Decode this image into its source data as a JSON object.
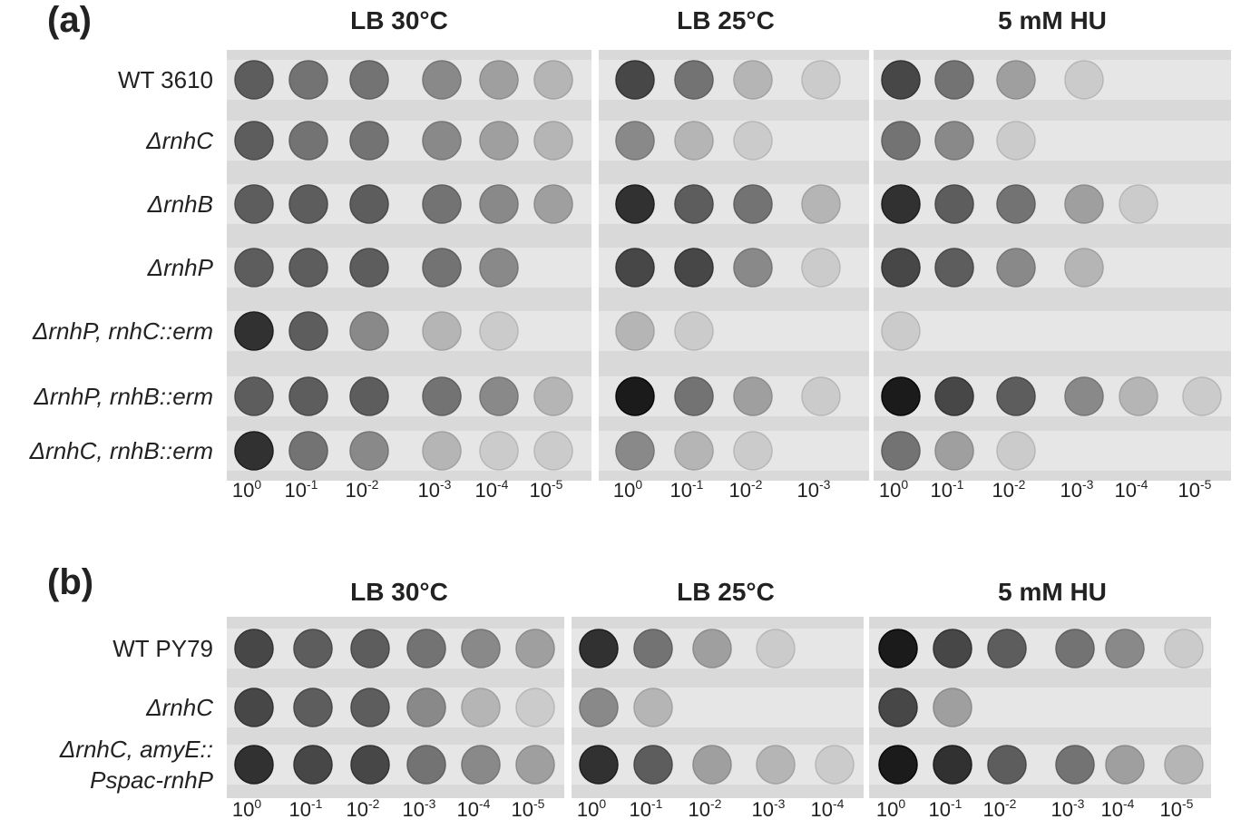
{
  "panels": [
    {
      "label": "(a)",
      "strains": [
        [
          "WT 3610"
        ],
        [
          "ΔrnhC"
        ],
        [
          "ΔrnhB"
        ],
        [
          "ΔrnhP"
        ],
        [
          "ΔrnhP, rnhC::erm"
        ],
        [
          "ΔrnhP, rnhB::erm"
        ],
        [
          "ΔrnhC, rnhB::erm"
        ]
      ],
      "plates": [
        {
          "title": "LB 30°C",
          "dilutions": [
            {
              "base": "10",
              "exponent": "0"
            },
            {
              "base": "10",
              "exponent": "-1"
            },
            {
              "base": "10",
              "exponent": "-2"
            },
            {
              "base": "10",
              "exponent": "-3"
            },
            {
              "base": "10",
              "exponent": "-4"
            },
            {
              "base": "10",
              "exponent": "-5"
            }
          ]
        },
        {
          "title": "LB 25°C",
          "dilutions": [
            {
              "base": "10",
              "exponent": "0"
            },
            {
              "base": "10",
              "exponent": "-1"
            },
            {
              "base": "10",
              "exponent": "-2"
            },
            {
              "base": "10",
              "exponent": "-3"
            }
          ]
        },
        {
          "title": "5 mM HU",
          "dilutions": [
            {
              "base": "10",
              "exponent": "0"
            },
            {
              "base": "10",
              "exponent": "-1"
            },
            {
              "base": "10",
              "exponent": "-2"
            },
            {
              "base": "10",
              "exponent": "-3"
            },
            {
              "base": "10",
              "exponent": "-4"
            },
            {
              "base": "10",
              "exponent": "-5"
            }
          ]
        }
      ]
    },
    {
      "label": "(b)",
      "strains": [
        [
          "WT PY79"
        ],
        [
          "ΔrnhC"
        ],
        [
          "ΔrnhC, amyE::",
          "Pspac-rnhP"
        ]
      ],
      "plates": [
        {
          "title": "LB 30°C",
          "dilutions": [
            {
              "base": "10",
              "exponent": "0"
            },
            {
              "base": "10",
              "exponent": "-1"
            },
            {
              "base": "10",
              "exponent": "-2"
            },
            {
              "base": "10",
              "exponent": "-3"
            },
            {
              "base": "10",
              "exponent": "-4"
            },
            {
              "base": "10",
              "exponent": "-5"
            }
          ]
        },
        {
          "title": "LB 25°C",
          "dilutions": [
            {
              "base": "10",
              "exponent": "0"
            },
            {
              "base": "10",
              "exponent": "-1"
            },
            {
              "base": "10",
              "exponent": "-2"
            },
            {
              "base": "10",
              "exponent": "-3"
            },
            {
              "base": "10",
              "exponent": "-4"
            }
          ]
        },
        {
          "title": "5 mM HU",
          "dilutions": [
            {
              "base": "10",
              "exponent": "0"
            },
            {
              "base": "10",
              "exponent": "-1"
            },
            {
              "base": "10",
              "exponent": "-2"
            },
            {
              "base": "10",
              "exponent": "-3"
            },
            {
              "base": "10",
              "exponent": "-4"
            },
            {
              "base": "10",
              "exponent": "-5"
            }
          ]
        }
      ]
    }
  ]
}
